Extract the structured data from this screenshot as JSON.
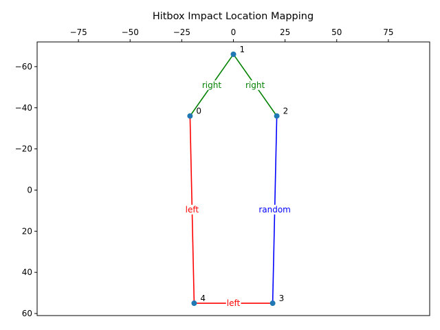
{
  "chart_data": {
    "type": "scatter",
    "title": "Hitbox Impact Location Mapping",
    "xlabel": "",
    "ylabel": "",
    "xlim": [
      -95,
      95
    ],
    "ylim": [
      61,
      -72
    ],
    "x_axis_position": "top",
    "y_axis_inverted": true,
    "grid": false,
    "x_ticks": [
      {
        "value": -75,
        "label": "−75"
      },
      {
        "value": -50,
        "label": "−50"
      },
      {
        "value": -25,
        "label": "−25"
      },
      {
        "value": 0,
        "label": "0"
      },
      {
        "value": 25,
        "label": "25"
      },
      {
        "value": 50,
        "label": "50"
      },
      {
        "value": 75,
        "label": "75"
      }
    ],
    "y_ticks": [
      {
        "value": -60,
        "label": "−60"
      },
      {
        "value": -40,
        "label": "−40"
      },
      {
        "value": -20,
        "label": "−20"
      },
      {
        "value": 0,
        "label": "0"
      },
      {
        "value": 20,
        "label": "20"
      },
      {
        "value": 40,
        "label": "40"
      },
      {
        "value": 60,
        "label": "60"
      }
    ],
    "points": [
      {
        "id": "0",
        "x": -21,
        "y": -36
      },
      {
        "id": "1",
        "x": 0,
        "y": -66
      },
      {
        "id": "2",
        "x": 21,
        "y": -36
      },
      {
        "id": "3",
        "x": 19,
        "y": 55
      },
      {
        "id": "4",
        "x": -19,
        "y": 55
      }
    ],
    "point_color": "#1f77b4",
    "edges": [
      {
        "from": 0,
        "to": 1,
        "label": "right",
        "color": "#008000"
      },
      {
        "from": 1,
        "to": 2,
        "label": "right",
        "color": "#008000"
      },
      {
        "from": 2,
        "to": 3,
        "label": "random",
        "color": "#0000ff"
      },
      {
        "from": 3,
        "to": 4,
        "label": "left",
        "color": "#ff0000"
      },
      {
        "from": 4,
        "to": 0,
        "label": "left",
        "color": "#ff0000"
      }
    ]
  }
}
